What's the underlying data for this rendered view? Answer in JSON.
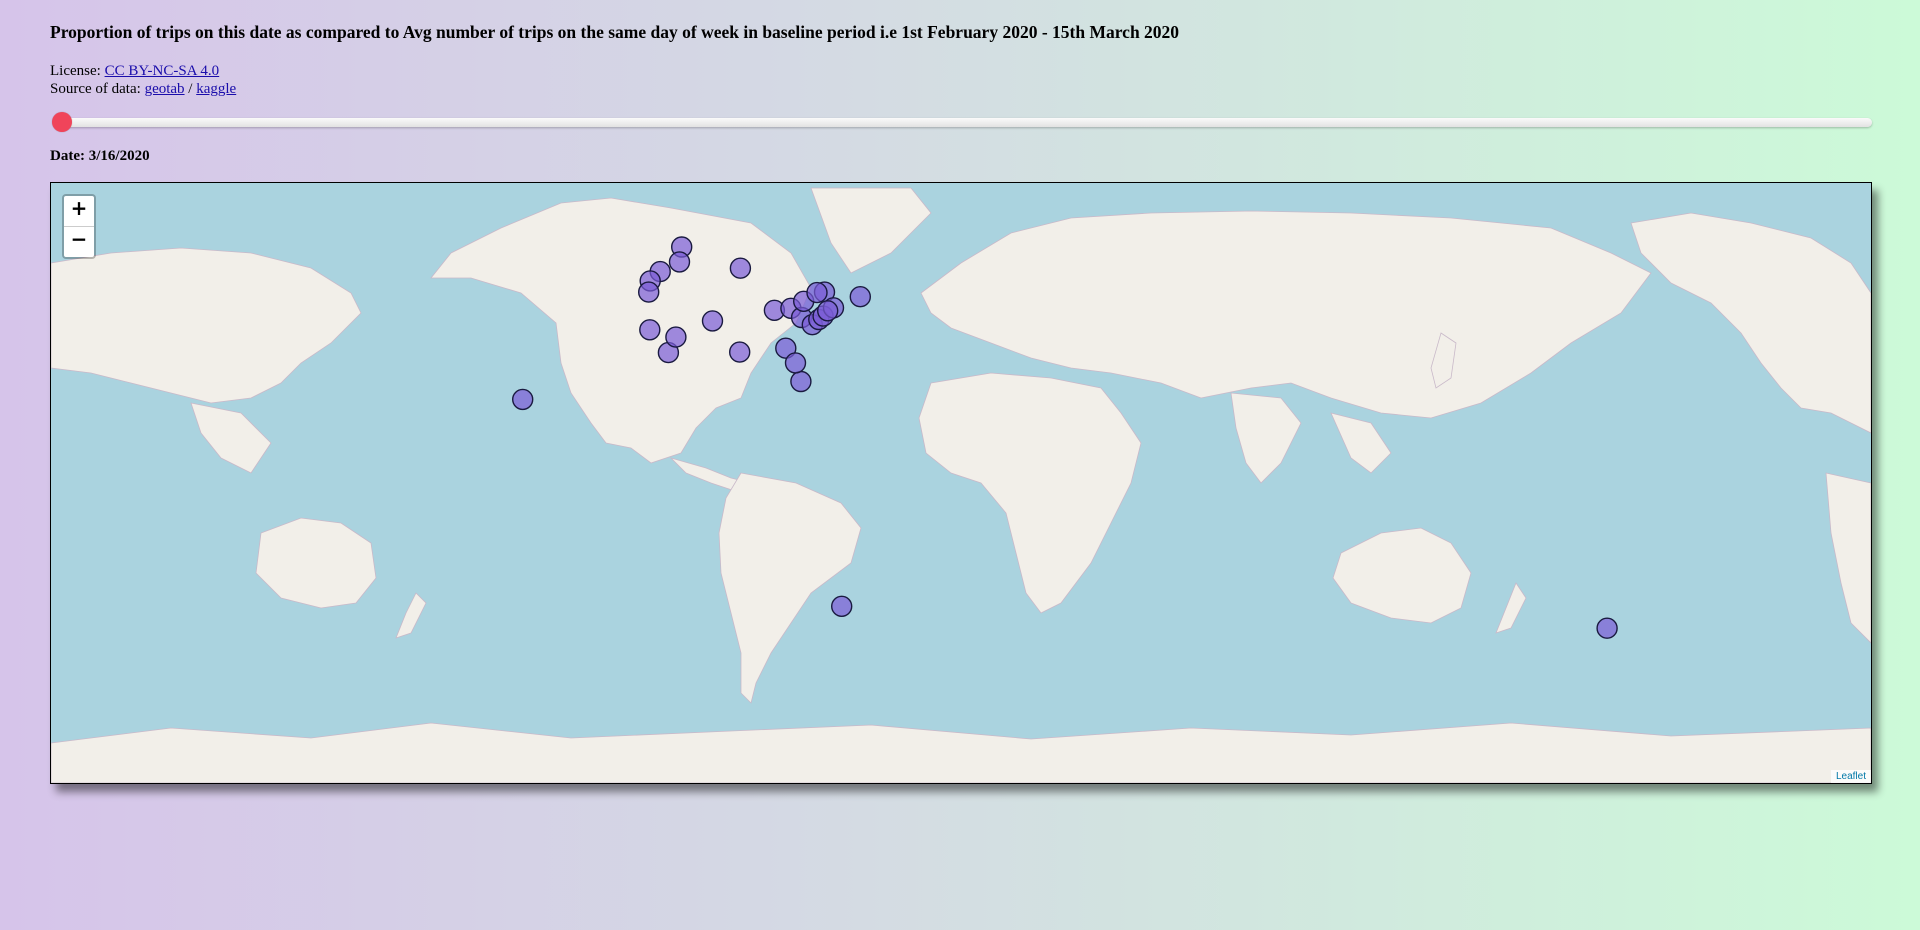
{
  "page": {
    "title": "Proportion of trips on this date as compared to Avg number of trips on the same day of week in baseline period i.e 1st February 2020 - 15th March 2020",
    "license_label": "License: ",
    "license_link": "CC BY-NC-SA 4.0",
    "source_label": "Source of data: ",
    "source_link_1": "geotab",
    "source_separator": " / ",
    "source_link_2": "kaggle",
    "date_label": "Date: ",
    "date_value": "3/16/2020"
  },
  "slider": {
    "position_fraction": 0.0
  },
  "map": {
    "zoom_in_label": "+",
    "zoom_out_label": "−",
    "attribution": "Leaflet",
    "markers": [
      {
        "lon": -119.5,
        "lat": 49.3
      },
      {
        "lon": -122.3,
        "lat": 47.6
      },
      {
        "lon": -122.7,
        "lat": 45.5
      },
      {
        "lon": -113.5,
        "lat": 53.5
      },
      {
        "lon": -114.1,
        "lat": 51.0
      },
      {
        "lon": -97.1,
        "lat": 49.9
      },
      {
        "lon": -122.4,
        "lat": 37.8
      },
      {
        "lon": -117.2,
        "lat": 32.7
      },
      {
        "lon": -115.1,
        "lat": 36.2
      },
      {
        "lon": -104.9,
        "lat": 39.7
      },
      {
        "lon": -97.3,
        "lat": 32.8
      },
      {
        "lon": -87.6,
        "lat": 41.9
      },
      {
        "lon": -84.4,
        "lat": 33.7
      },
      {
        "lon": -80.2,
        "lat": 25.8
      },
      {
        "lon": -81.7,
        "lat": 30.3
      },
      {
        "lon": -83.0,
        "lat": 42.3
      },
      {
        "lon": -80.0,
        "lat": 40.4
      },
      {
        "lon": -79.4,
        "lat": 43.7
      },
      {
        "lon": -77.0,
        "lat": 38.9
      },
      {
        "lon": -75.2,
        "lat": 40.0
      },
      {
        "lon": -74.0,
        "lat": 40.7
      },
      {
        "lon": -73.6,
        "lat": 45.5
      },
      {
        "lon": -71.1,
        "lat": 42.4
      },
      {
        "lon": -63.6,
        "lat": 44.6
      },
      {
        "lon": -75.7,
        "lat": 45.4
      },
      {
        "lon": -72.7,
        "lat": 41.8
      },
      {
        "lon": -157.9,
        "lat": 21.3
      },
      {
        "lon": -68.8,
        "lat": -32.9
      },
      {
        "lon": 145.0,
        "lat": -37.8
      }
    ]
  }
}
